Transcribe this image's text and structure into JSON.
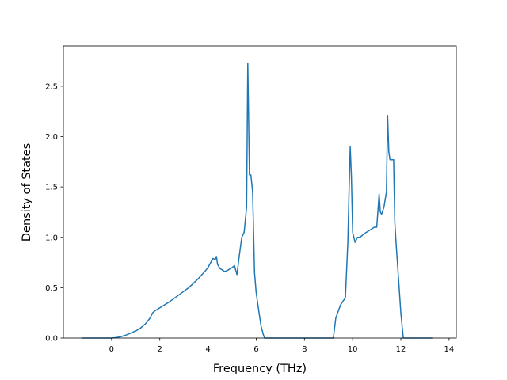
{
  "chart_data": {
    "type": "line",
    "title": "",
    "xlabel": "Frequency (THz)",
    "ylabel": "Density of States",
    "xlim": [
      -2.0,
      14.3
    ],
    "ylim": [
      0.0,
      2.9
    ],
    "x_ticks": [
      0,
      2,
      4,
      6,
      8,
      10,
      12,
      14
    ],
    "x_tick_labels": [
      "0",
      "2",
      "4",
      "6",
      "8",
      "10",
      "12",
      "14"
    ],
    "y_ticks": [
      0.0,
      0.5,
      1.0,
      1.5,
      2.0,
      2.5
    ],
    "y_tick_labels": [
      "0.0",
      "0.5",
      "1.0",
      "1.5",
      "2.0",
      "2.5"
    ],
    "grid": false,
    "legend": "none",
    "series": [
      {
        "color": "#1f77b4",
        "x": [
          -1.25,
          0.0,
          0.2,
          0.4,
          0.6,
          0.8,
          1.0,
          1.2,
          1.4,
          1.6,
          1.7,
          1.8,
          2.0,
          2.4,
          2.8,
          3.2,
          3.6,
          3.9,
          4.0,
          4.2,
          4.3,
          4.35,
          4.4,
          4.5,
          4.7,
          4.8,
          5.0,
          5.1,
          5.2,
          5.3,
          5.4,
          5.5,
          5.6,
          5.65,
          5.72,
          5.78,
          5.85,
          5.93,
          6.0,
          6.1,
          6.2,
          6.3,
          6.35,
          9.2,
          9.3,
          9.5,
          9.7,
          9.8,
          9.85,
          9.9,
          9.95,
          10.0,
          10.1,
          10.2,
          10.3,
          10.5,
          10.7,
          10.9,
          11.0,
          11.1,
          11.15,
          11.2,
          11.3,
          11.4,
          11.45,
          11.5,
          11.55,
          11.6,
          11.7,
          11.75,
          11.8,
          11.9,
          12.0,
          12.1,
          12.15,
          13.3
        ],
        "y": [
          0.0,
          0.0,
          0.005,
          0.015,
          0.03,
          0.05,
          0.07,
          0.1,
          0.14,
          0.2,
          0.25,
          0.27,
          0.3,
          0.36,
          0.43,
          0.5,
          0.59,
          0.67,
          0.7,
          0.79,
          0.78,
          0.81,
          0.73,
          0.69,
          0.66,
          0.67,
          0.7,
          0.72,
          0.63,
          0.82,
          1.0,
          1.05,
          1.3,
          2.73,
          1.62,
          1.62,
          1.45,
          0.65,
          0.45,
          0.28,
          0.12,
          0.03,
          0.0,
          0.0,
          0.2,
          0.33,
          0.4,
          0.95,
          1.45,
          1.9,
          1.6,
          1.05,
          0.95,
          1.0,
          1.0,
          1.04,
          1.07,
          1.1,
          1.1,
          1.43,
          1.25,
          1.23,
          1.3,
          1.45,
          2.21,
          1.85,
          1.77,
          1.77,
          1.77,
          1.15,
          0.95,
          0.6,
          0.25,
          0.0,
          0.0,
          0.0
        ]
      }
    ]
  }
}
